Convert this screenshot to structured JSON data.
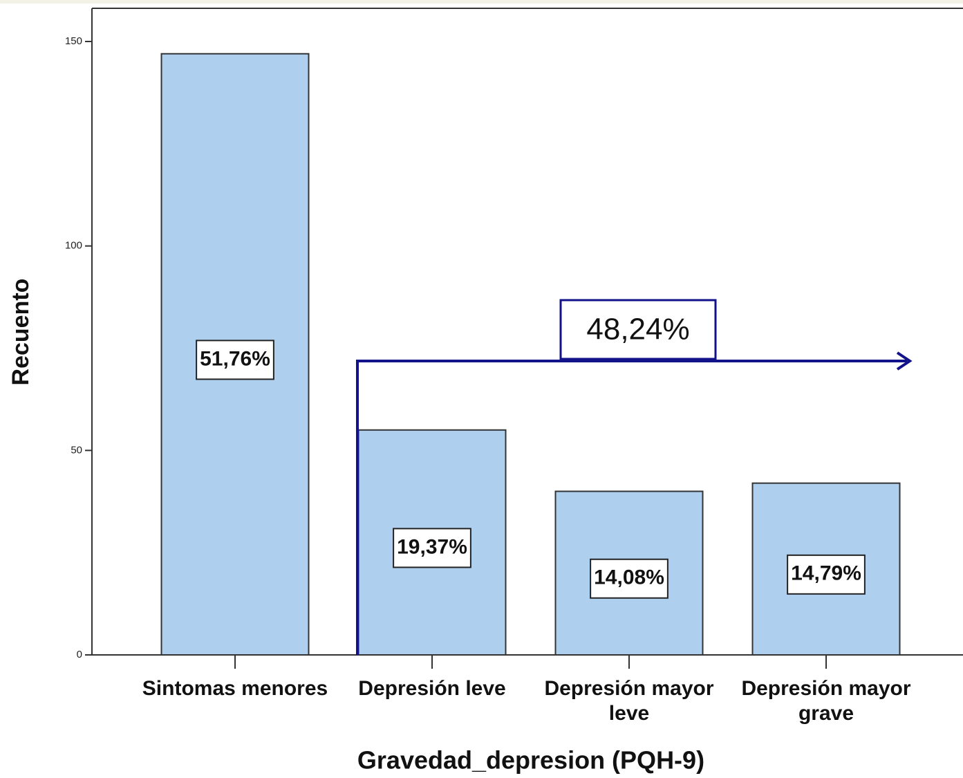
{
  "chart_data": {
    "type": "bar",
    "x_label": "Gravedad_depresion (PQH-9)",
    "y_label": "Recuento",
    "categories": [
      "Sintomas menores",
      "Depresión leve",
      "Depresión mayor leve",
      "Depresión mayor grave"
    ],
    "values": [
      147,
      55,
      40,
      42
    ],
    "bar_labels": [
      "51,76%",
      "19,37%",
      "14,08%",
      "14,79%"
    ],
    "annotation": "48,24%",
    "color": "#aecfee",
    "ylim": [
      0,
      150
    ],
    "yticks": [
      0,
      50,
      100,
      150
    ],
    "grid": false
  }
}
